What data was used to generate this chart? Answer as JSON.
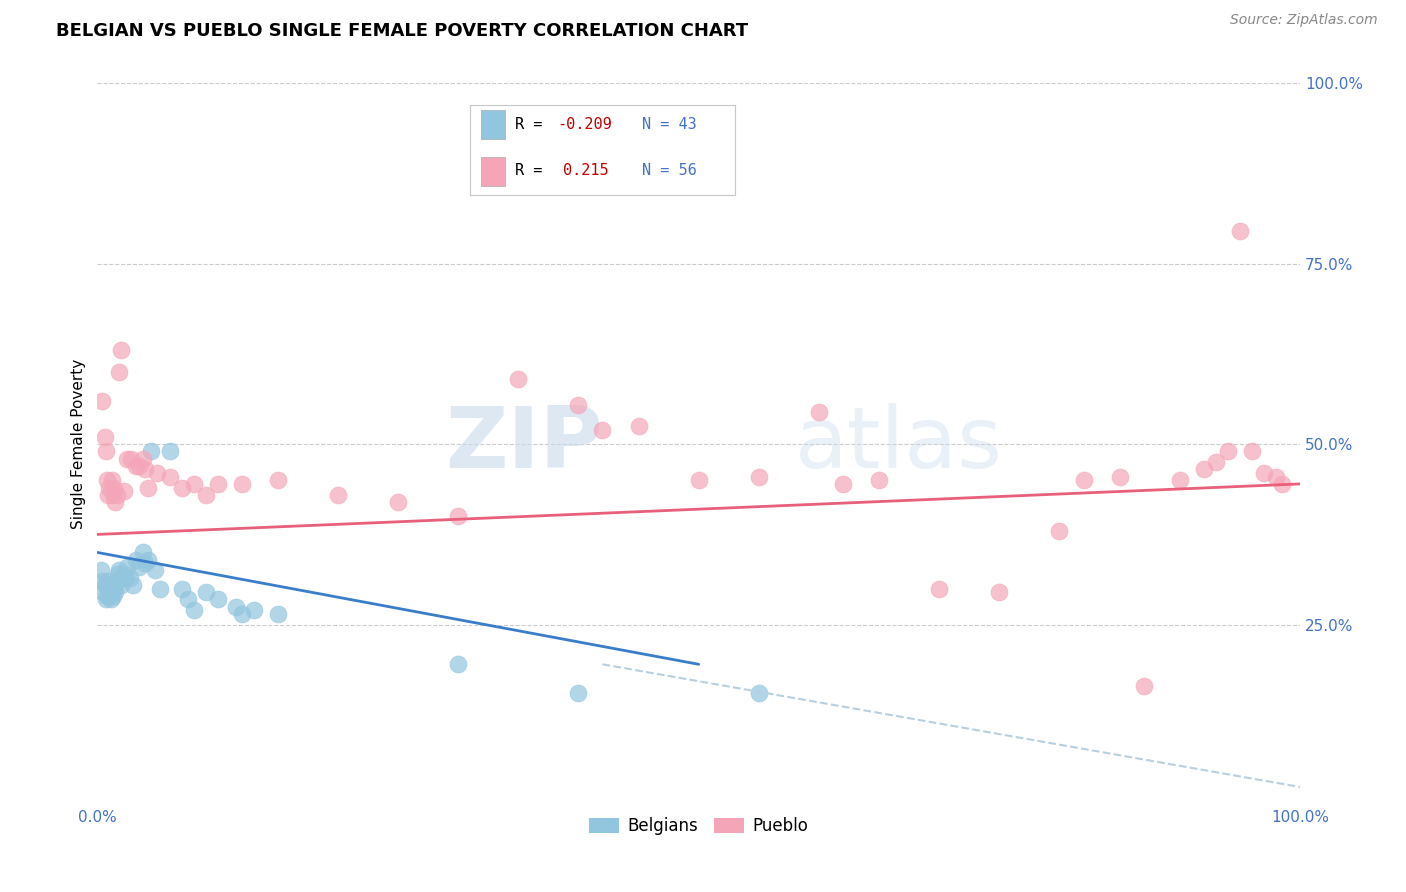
{
  "title": "BELGIAN VS PUEBLO SINGLE FEMALE POVERTY CORRELATION CHART",
  "source_text": "Source: ZipAtlas.com",
  "ylabel": "Single Female Poverty",
  "watermark_zip": "ZIP",
  "watermark_atlas": "atlas",
  "color_blue": "#92c5de",
  "color_pink": "#f4a6b8",
  "line_blue": "#3a7dc9",
  "line_pink": "#e8607a",
  "line_dashed_color": "#b8cfe0",
  "background_color": "#ffffff",
  "grid_color": "#cccccc",
  "blue_scatter": [
    [
      0.003,
      0.325
    ],
    [
      0.004,
      0.31
    ],
    [
      0.005,
      0.295
    ],
    [
      0.006,
      0.305
    ],
    [
      0.007,
      0.285
    ],
    [
      0.008,
      0.29
    ],
    [
      0.009,
      0.31
    ],
    [
      0.01,
      0.305
    ],
    [
      0.011,
      0.285
    ],
    [
      0.012,
      0.295
    ],
    [
      0.013,
      0.29
    ],
    [
      0.014,
      0.3
    ],
    [
      0.015,
      0.295
    ],
    [
      0.016,
      0.31
    ],
    [
      0.017,
      0.32
    ],
    [
      0.018,
      0.325
    ],
    [
      0.02,
      0.305
    ],
    [
      0.022,
      0.32
    ],
    [
      0.024,
      0.315
    ],
    [
      0.025,
      0.33
    ],
    [
      0.027,
      0.315
    ],
    [
      0.03,
      0.305
    ],
    [
      0.032,
      0.34
    ],
    [
      0.035,
      0.33
    ],
    [
      0.038,
      0.35
    ],
    [
      0.04,
      0.335
    ],
    [
      0.042,
      0.34
    ],
    [
      0.045,
      0.49
    ],
    [
      0.048,
      0.325
    ],
    [
      0.052,
      0.3
    ],
    [
      0.06,
      0.49
    ],
    [
      0.07,
      0.3
    ],
    [
      0.075,
      0.285
    ],
    [
      0.08,
      0.27
    ],
    [
      0.09,
      0.295
    ],
    [
      0.1,
      0.285
    ],
    [
      0.115,
      0.275
    ],
    [
      0.12,
      0.265
    ],
    [
      0.13,
      0.27
    ],
    [
      0.15,
      0.265
    ],
    [
      0.3,
      0.195
    ],
    [
      0.4,
      0.155
    ],
    [
      0.55,
      0.155
    ]
  ],
  "pink_scatter": [
    [
      0.004,
      0.56
    ],
    [
      0.006,
      0.51
    ],
    [
      0.007,
      0.49
    ],
    [
      0.008,
      0.45
    ],
    [
      0.009,
      0.43
    ],
    [
      0.01,
      0.44
    ],
    [
      0.012,
      0.45
    ],
    [
      0.013,
      0.43
    ],
    [
      0.014,
      0.44
    ],
    [
      0.015,
      0.42
    ],
    [
      0.016,
      0.43
    ],
    [
      0.018,
      0.6
    ],
    [
      0.02,
      0.63
    ],
    [
      0.022,
      0.435
    ],
    [
      0.025,
      0.48
    ],
    [
      0.028,
      0.48
    ],
    [
      0.032,
      0.47
    ],
    [
      0.035,
      0.47
    ],
    [
      0.038,
      0.48
    ],
    [
      0.04,
      0.465
    ],
    [
      0.042,
      0.44
    ],
    [
      0.05,
      0.46
    ],
    [
      0.06,
      0.455
    ],
    [
      0.07,
      0.44
    ],
    [
      0.08,
      0.445
    ],
    [
      0.09,
      0.43
    ],
    [
      0.1,
      0.445
    ],
    [
      0.12,
      0.445
    ],
    [
      0.15,
      0.45
    ],
    [
      0.2,
      0.43
    ],
    [
      0.25,
      0.42
    ],
    [
      0.3,
      0.4
    ],
    [
      0.35,
      0.59
    ],
    [
      0.4,
      0.555
    ],
    [
      0.42,
      0.52
    ],
    [
      0.45,
      0.525
    ],
    [
      0.5,
      0.45
    ],
    [
      0.55,
      0.455
    ],
    [
      0.6,
      0.545
    ],
    [
      0.62,
      0.445
    ],
    [
      0.65,
      0.45
    ],
    [
      0.7,
      0.3
    ],
    [
      0.75,
      0.295
    ],
    [
      0.8,
      0.38
    ],
    [
      0.82,
      0.45
    ],
    [
      0.85,
      0.455
    ],
    [
      0.87,
      0.165
    ],
    [
      0.9,
      0.45
    ],
    [
      0.92,
      0.465
    ],
    [
      0.93,
      0.475
    ],
    [
      0.94,
      0.49
    ],
    [
      0.95,
      0.795
    ],
    [
      0.96,
      0.49
    ],
    [
      0.97,
      0.46
    ],
    [
      0.98,
      0.455
    ],
    [
      0.985,
      0.445
    ]
  ],
  "blue_line_x": [
    0.0,
    0.5
  ],
  "blue_line_y": [
    0.35,
    0.195
  ],
  "pink_line_x": [
    0.0,
    1.0
  ],
  "pink_line_y": [
    0.375,
    0.445
  ],
  "dashed_line_x": [
    0.42,
    1.0
  ],
  "dashed_line_y": [
    0.195,
    0.025
  ],
  "xlim": [
    0.0,
    1.0
  ],
  "ylim": [
    0.0,
    1.0
  ],
  "xtick_labels": [
    "0.0%",
    "100.0%"
  ],
  "ytick_labels": [
    "25.0%",
    "50.0%",
    "75.0%",
    "100.0%"
  ],
  "ytick_values": [
    0.25,
    0.5,
    0.75,
    1.0
  ],
  "legend_labels": [
    "Belgians",
    "Pueblo"
  ],
  "title_fontsize": 13,
  "label_fontsize": 11,
  "tick_fontsize": 11,
  "source_fontsize": 10,
  "tick_color": "#4472c4",
  "legend_r1_color": "#c00000",
  "legend_r2_color": "#c00000",
  "legend_n_color": "#4472c4"
}
